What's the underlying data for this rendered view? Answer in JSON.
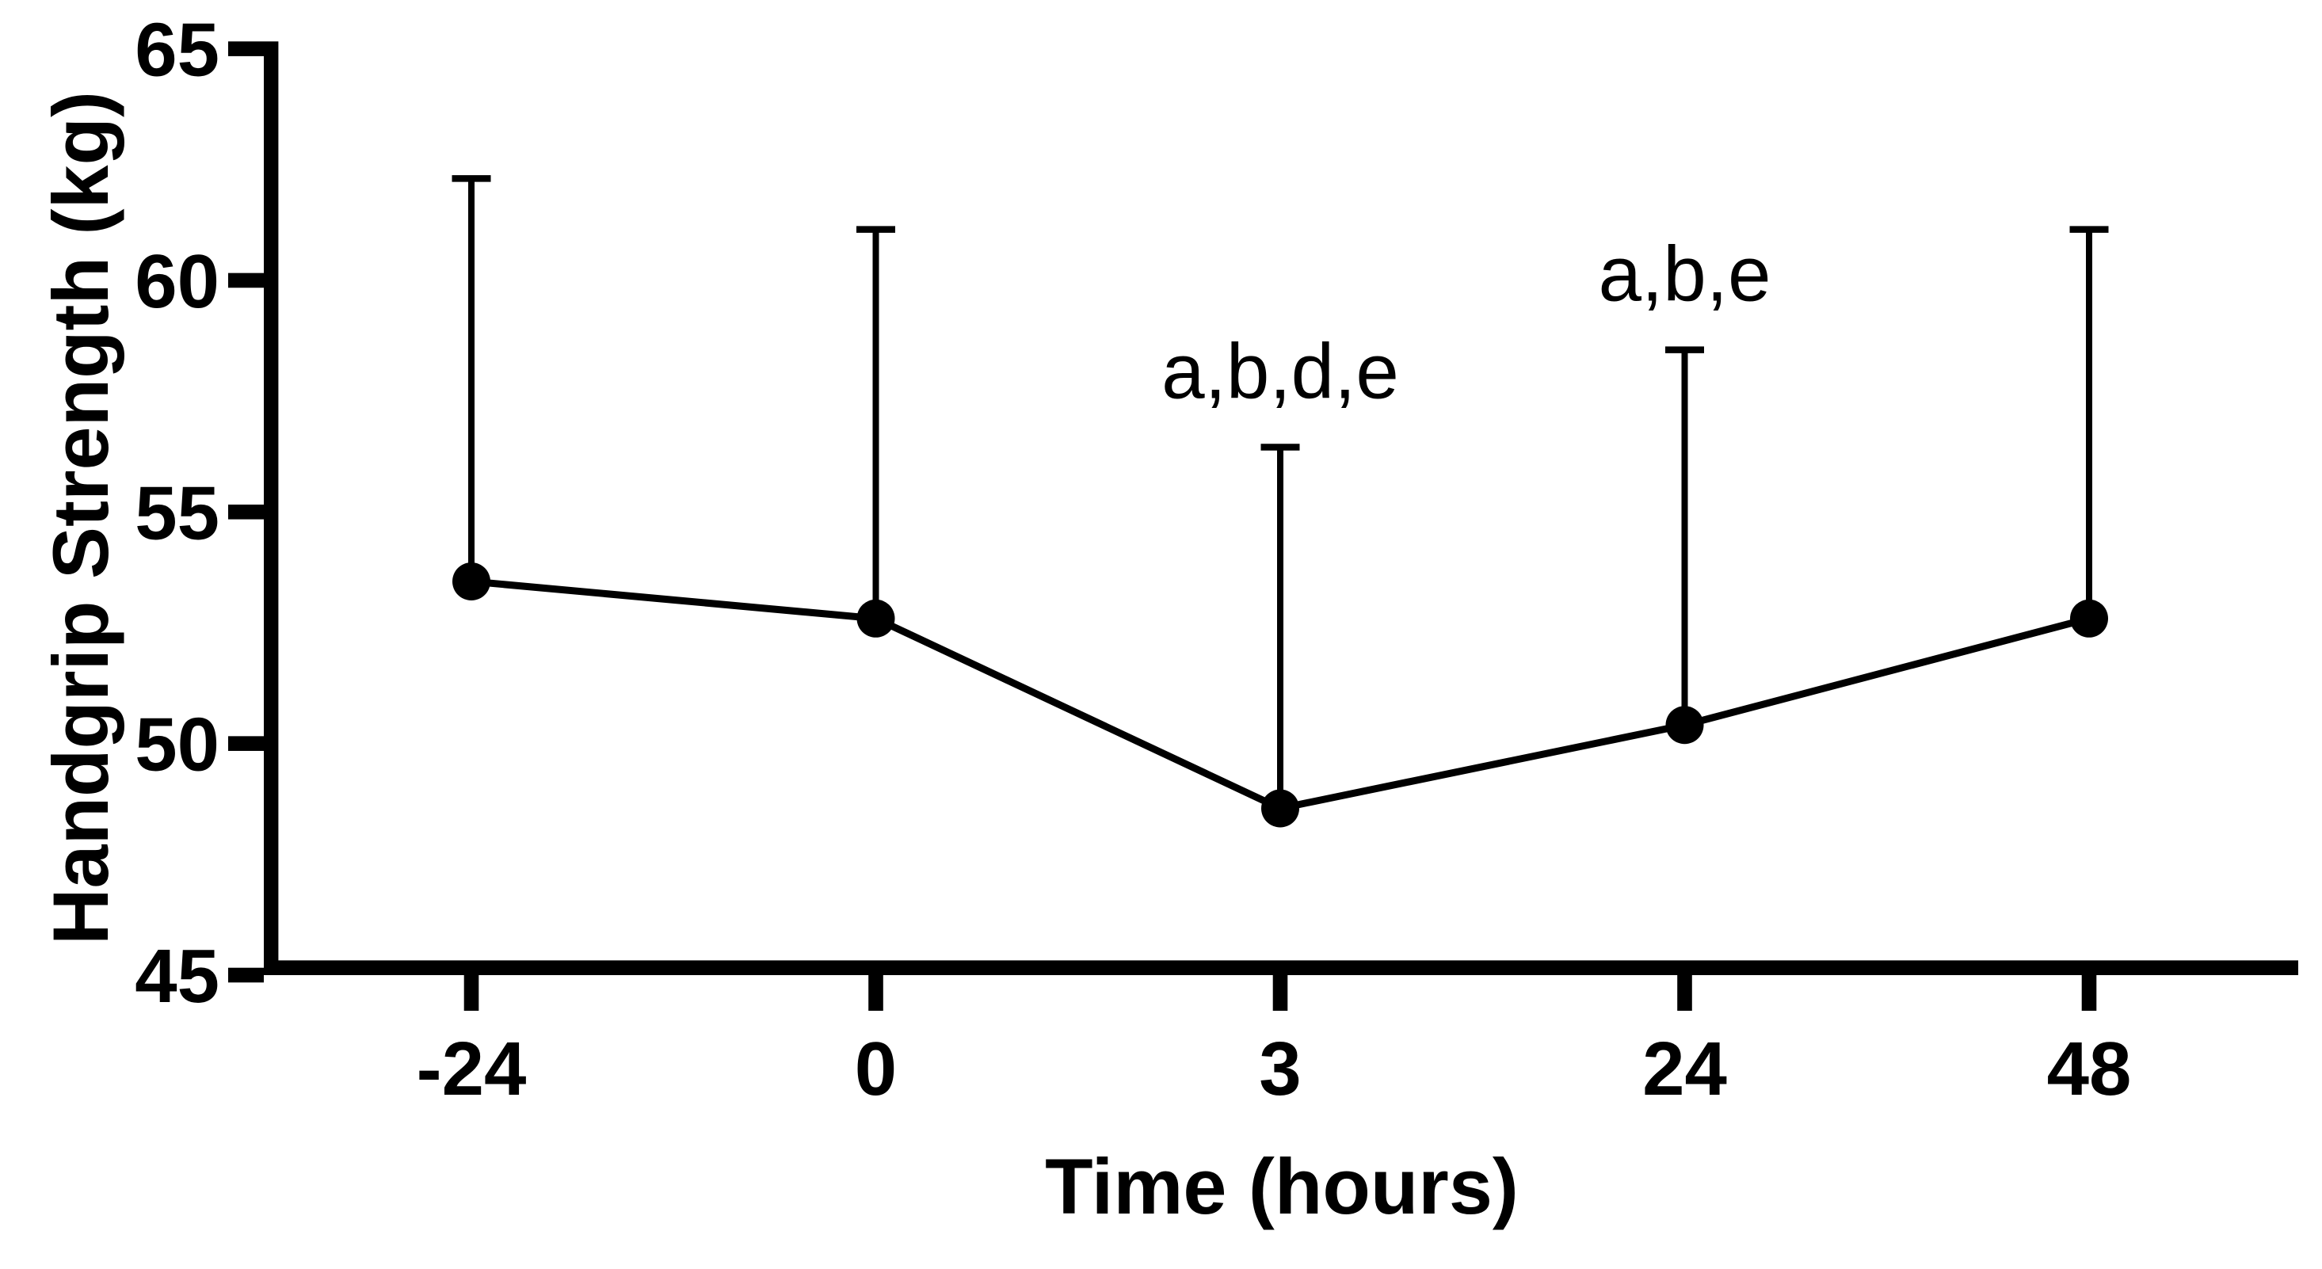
{
  "figure": {
    "background_color": "#ffffff",
    "ink_color": "#000000"
  },
  "chart_data": {
    "type": "line",
    "title": "",
    "xlabel": "Time (hours)",
    "ylabel": "Handgrip Strength (kg)",
    "categories": [
      "-24",
      "0",
      "3",
      "24",
      "48"
    ],
    "series": [
      {
        "name": "Handgrip Strength",
        "means": [
          53.5,
          52.7,
          48.6,
          50.4,
          52.7
        ],
        "error_upper_top": [
          62.2,
          61.1,
          56.4,
          58.5,
          61.1
        ],
        "sd_upper": [
          8.7,
          8.4,
          7.8,
          8.1,
          8.4
        ],
        "marker": "filled-circle",
        "color": "#000000"
      }
    ],
    "annotations": [
      {
        "text": "a,b,d,e",
        "category": "3"
      },
      {
        "text": "a,b,e",
        "category": "24"
      }
    ],
    "ylim": [
      45,
      65
    ],
    "yticks": [
      45,
      50,
      55,
      60,
      65
    ],
    "grid": false,
    "legend": "none",
    "error_bars": "upper-only-capped"
  }
}
